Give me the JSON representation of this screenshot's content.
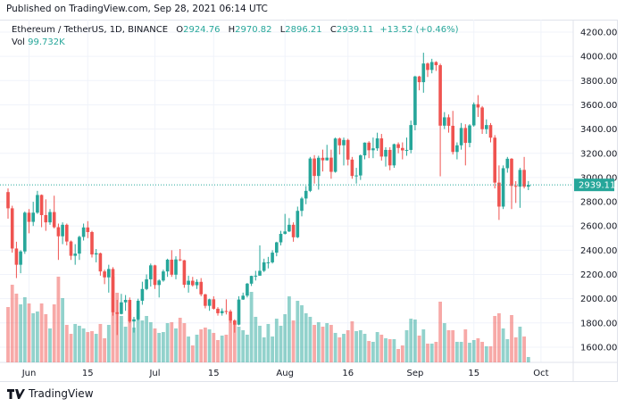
{
  "published": "Published on TradingView.com, Sep 28, 2021 06:14 UTC",
  "legend": {
    "symbol": "Ethereum / TetherUS, 1D, BINANCE",
    "o_label": "O",
    "o_value": "2924.76",
    "h_label": "H",
    "h_value": "2970.82",
    "l_label": "L",
    "l_value": "2896.21",
    "c_label": "C",
    "c_value": "2939.11",
    "change": "+13.52 (+0.46%)",
    "vol_label": "Vol",
    "vol_value": "99.732K"
  },
  "footer": {
    "brand": "TradingView",
    "logo_icon": "tradingview-logo-icon"
  },
  "colors": {
    "up": "#26a69a",
    "down": "#ef5350",
    "grid": "#f0f3fa",
    "price_line": "#26a69a"
  },
  "chart_data": {
    "type": "candlestick",
    "interval": "1D",
    "ylim": [
      1500,
      4250
    ],
    "grid": true,
    "price_ticks": [
      "4200.00",
      "4000.00",
      "3800.00",
      "3600.00",
      "3400.00",
      "3200.00",
      "3000.00",
      "2800.00",
      "2600.00",
      "2400.00",
      "2200.00",
      "2000.00",
      "1800.00",
      "1600.00"
    ],
    "current_price": "2939.11",
    "time_ticks": [
      {
        "label": "Jun",
        "date": "2021-06-01"
      },
      {
        "label": "15",
        "date": "2021-06-15"
      },
      {
        "label": "Jul",
        "date": "2021-07-01"
      },
      {
        "label": "15",
        "date": "2021-07-15"
      },
      {
        "label": "Aug",
        "date": "2021-08-01"
      },
      {
        "label": "16",
        "date": "2021-08-16"
      },
      {
        "label": "Sep",
        "date": "2021-09-01"
      },
      {
        "label": "15",
        "date": "2021-09-15"
      },
      {
        "label": "Oct",
        "date": "2021-10-01"
      }
    ],
    "dates": [
      "2021-05-27",
      "2021-05-28",
      "2021-05-29",
      "2021-05-30",
      "2021-05-31",
      "2021-06-01",
      "2021-06-02",
      "2021-06-03",
      "2021-06-04",
      "2021-06-05",
      "2021-06-06",
      "2021-06-07",
      "2021-06-08",
      "2021-06-09",
      "2021-06-10",
      "2021-06-11",
      "2021-06-12",
      "2021-06-13",
      "2021-06-14",
      "2021-06-15",
      "2021-06-16",
      "2021-06-17",
      "2021-06-18",
      "2021-06-19",
      "2021-06-20",
      "2021-06-21",
      "2021-06-22",
      "2021-06-23",
      "2021-06-24",
      "2021-06-25",
      "2021-06-26",
      "2021-06-27",
      "2021-06-28",
      "2021-06-29",
      "2021-06-30",
      "2021-07-01",
      "2021-07-02",
      "2021-07-03",
      "2021-07-04",
      "2021-07-05",
      "2021-07-06",
      "2021-07-07",
      "2021-07-08",
      "2021-07-09",
      "2021-07-10",
      "2021-07-11",
      "2021-07-12",
      "2021-07-13",
      "2021-07-14",
      "2021-07-15",
      "2021-07-16",
      "2021-07-17",
      "2021-07-18",
      "2021-07-19",
      "2021-07-20",
      "2021-07-21",
      "2021-07-22",
      "2021-07-23",
      "2021-07-24",
      "2021-07-25",
      "2021-07-26",
      "2021-07-27",
      "2021-07-28",
      "2021-07-29",
      "2021-07-30",
      "2021-07-31",
      "2021-08-01",
      "2021-08-02",
      "2021-08-03",
      "2021-08-04",
      "2021-08-05",
      "2021-08-06",
      "2021-08-07",
      "2021-08-08",
      "2021-08-09",
      "2021-08-10",
      "2021-08-11",
      "2021-08-12",
      "2021-08-13",
      "2021-08-14",
      "2021-08-15",
      "2021-08-16",
      "2021-08-17",
      "2021-08-18",
      "2021-08-19",
      "2021-08-20",
      "2021-08-21",
      "2021-08-22",
      "2021-08-23",
      "2021-08-24",
      "2021-08-25",
      "2021-08-26",
      "2021-08-27",
      "2021-08-28",
      "2021-08-29",
      "2021-08-30",
      "2021-08-31",
      "2021-09-01",
      "2021-09-02",
      "2021-09-03",
      "2021-09-04",
      "2021-09-05",
      "2021-09-06",
      "2021-09-07",
      "2021-09-08",
      "2021-09-09",
      "2021-09-10",
      "2021-09-11",
      "2021-09-12",
      "2021-09-13",
      "2021-09-14",
      "2021-09-15",
      "2021-09-16",
      "2021-09-17",
      "2021-09-18",
      "2021-09-19",
      "2021-09-20",
      "2021-09-21",
      "2021-09-22",
      "2021-09-23",
      "2021-09-24",
      "2021-09-25",
      "2021-09-26",
      "2021-09-27",
      "2021-09-28"
    ],
    "open": [
      2880,
      2746,
      2414,
      2280,
      2390,
      2710,
      2634,
      2710,
      2856,
      2690,
      2630,
      2715,
      2590,
      2515,
      2610,
      2472,
      2354,
      2372,
      2510,
      2588,
      2550,
      2365,
      2375,
      2225,
      2176,
      2245,
      1888,
      1874,
      1970,
      1990,
      1812,
      1830,
      1983,
      2080,
      2160,
      2275,
      2113,
      2150,
      2225,
      2322,
      2198,
      2324,
      2317,
      2115,
      2148,
      2111,
      2139,
      2036,
      1941,
      1995,
      1917,
      1880,
      1898,
      1895,
      1820,
      1786,
      1993,
      2025,
      2124,
      2188,
      2190,
      2230,
      2300,
      2300,
      2380,
      2465,
      2535,
      2555,
      2610,
      2507,
      2725,
      2827,
      2890,
      3157,
      3013,
      3163,
      3142,
      3164,
      3047,
      3322,
      3266,
      3310,
      3148,
      3013,
      3017,
      3183,
      3288,
      3225,
      3241,
      3323,
      3173,
      3228,
      3100,
      3275,
      3244,
      3224,
      3228,
      3433,
      3834,
      3787,
      3941,
      3888,
      3953,
      3927,
      3428,
      3497,
      3427,
      3211,
      3266,
      3409,
      3286,
      3430,
      3605,
      3578,
      3399,
      3433,
      3329,
      2958,
      2760,
      3077,
      3155,
      2931,
      2925,
      3063,
      2924.76
    ],
    "high": [
      2910,
      2767,
      2470,
      2400,
      2720,
      2740,
      2800,
      2890,
      2860,
      2820,
      2740,
      2850,
      2620,
      2630,
      2620,
      2480,
      2450,
      2520,
      2620,
      2640,
      2560,
      2410,
      2380,
      2240,
      2280,
      2260,
      1990,
      2040,
      2030,
      2010,
      1850,
      2000,
      2140,
      2200,
      2290,
      2280,
      2160,
      2240,
      2330,
      2400,
      2350,
      2410,
      2320,
      2190,
      2180,
      2160,
      2170,
      2040,
      2000,
      2020,
      1930,
      1920,
      1995,
      1910,
      1830,
      2020,
      2050,
      2130,
      2190,
      2230,
      2440,
      2330,
      2345,
      2400,
      2470,
      2560,
      2700,
      2665,
      2630,
      2760,
      2840,
      2930,
      3170,
      3185,
      3180,
      3230,
      3270,
      3230,
      3330,
      3330,
      3330,
      3320,
      3170,
      3080,
      3190,
      3290,
      3300,
      3330,
      3370,
      3360,
      3250,
      3250,
      3280,
      3290,
      3290,
      3330,
      3470,
      3840,
      3840,
      4030,
      3950,
      3980,
      3960,
      3940,
      3540,
      3520,
      3550,
      3290,
      3450,
      3440,
      3440,
      3620,
      3680,
      3590,
      3480,
      3450,
      3350,
      3100,
      3100,
      3170,
      3160,
      2970,
      3080,
      3170,
      2970.82
    ],
    "low": [
      2660,
      2380,
      2170,
      2210,
      2370,
      2540,
      2600,
      2700,
      2590,
      2560,
      2610,
      2580,
      2320,
      2450,
      2440,
      2320,
      2280,
      2320,
      2480,
      2500,
      2340,
      2300,
      2190,
      2120,
      2050,
      1860,
      1700,
      1870,
      1900,
      1800,
      1720,
      1820,
      1950,
      2070,
      2100,
      2080,
      2010,
      2140,
      2180,
      2180,
      2160,
      2310,
      2090,
      2050,
      2100,
      2080,
      2020,
      1920,
      1900,
      1910,
      1860,
      1860,
      1870,
      1800,
      1720,
      1780,
      1990,
      2010,
      2105,
      2150,
      2190,
      2220,
      2250,
      2290,
      2350,
      2440,
      2530,
      2550,
      2470,
      2500,
      2680,
      2780,
      2880,
      2950,
      2900,
      3050,
      3140,
      2990,
      3040,
      3190,
      3100,
      3100,
      2990,
      2950,
      2980,
      3150,
      3160,
      3160,
      3220,
      3140,
      3090,
      3060,
      3080,
      3200,
      3150,
      3180,
      3200,
      3390,
      3720,
      3700,
      3830,
      3860,
      3880,
      3010,
      3400,
      3370,
      3190,
      3150,
      3230,
      3100,
      3250,
      3420,
      3500,
      3360,
      3360,
      3290,
      2910,
      2650,
      2740,
      3040,
      2740,
      2790,
      2750,
      2910,
      2896.21
    ],
    "close": [
      2746,
      2414,
      2280,
      2390,
      2710,
      2634,
      2710,
      2856,
      2690,
      2630,
      2715,
      2590,
      2515,
      2610,
      2472,
      2354,
      2372,
      2510,
      2588,
      2550,
      2365,
      2375,
      2225,
      2176,
      2245,
      1888,
      1874,
      1970,
      1990,
      1812,
      1830,
      1983,
      2080,
      2160,
      2275,
      2113,
      2150,
      2225,
      2322,
      2198,
      2324,
      2317,
      2115,
      2148,
      2111,
      2139,
      2036,
      1941,
      1995,
      1917,
      1880,
      1898,
      1895,
      1820,
      1786,
      1993,
      2025,
      2124,
      2188,
      2190,
      2230,
      2300,
      2300,
      2380,
      2465,
      2535,
      2555,
      2610,
      2507,
      2725,
      2827,
      2890,
      3157,
      3013,
      3163,
      3142,
      3164,
      3047,
      3322,
      3266,
      3310,
      3148,
      3013,
      3017,
      3183,
      3288,
      3225,
      3241,
      3323,
      3173,
      3228,
      3100,
      3275,
      3244,
      3224,
      3228,
      3433,
      3834,
      3787,
      3941,
      3888,
      3953,
      3927,
      3428,
      3497,
      3427,
      3211,
      3266,
      3409,
      3286,
      3430,
      3605,
      3578,
      3399,
      3433,
      3329,
      2958,
      2760,
      3077,
      3155,
      2931,
      2925,
      3063,
      2924.76,
      2939.11
    ],
    "volume_k": [
      1029,
      1444,
      1278,
      1079,
      1212,
      1096,
      913,
      946,
      1096,
      896,
      631,
      1079,
      1594,
      1195,
      697,
      531,
      714,
      681,
      631,
      564,
      581,
      531,
      714,
      448,
      697,
      1594,
      1295,
      863,
      664,
      979,
      647,
      979,
      780,
      863,
      747,
      631,
      548,
      564,
      730,
      747,
      631,
      830,
      730,
      481,
      315,
      515,
      614,
      647,
      614,
      548,
      415,
      498,
      515,
      780,
      714,
      664,
      598,
      515,
      1311,
      847,
      681,
      465,
      714,
      481,
      813,
      681,
      896,
      1228,
      780,
      1145,
      1062,
      913,
      847,
      697,
      747,
      664,
      730,
      697,
      548,
      465,
      531,
      598,
      764,
      581,
      598,
      531,
      398,
      382,
      564,
      515,
      448,
      432,
      432,
      249,
      315,
      598,
      813,
      797,
      498,
      614,
      349,
      349,
      382,
      1129,
      730,
      598,
      598,
      382,
      382,
      614,
      365,
      415,
      448,
      382,
      299,
      299,
      863,
      913,
      631,
      432,
      880,
      465,
      664,
      481,
      99.732
    ]
  }
}
